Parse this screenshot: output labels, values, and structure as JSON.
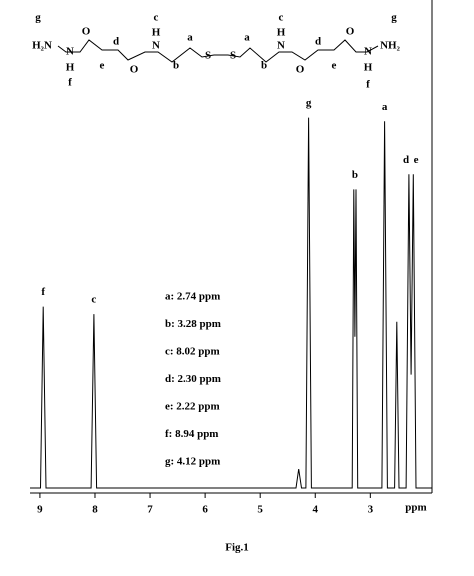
{
  "structure": {
    "labels": [
      "g",
      "H₂N",
      "N",
      "H",
      "f",
      "O",
      "e",
      "d",
      "O",
      "c",
      "H",
      "N",
      "a",
      "b",
      "S",
      "S",
      "a",
      "b",
      "c",
      "H",
      "N",
      "O",
      "d",
      "e",
      "O",
      "N",
      "H",
      "f",
      "NH₂",
      "g"
    ]
  },
  "chart_data": {
    "type": "line",
    "x": [
      9.18,
      8.99,
      8.94,
      8.89,
      8.07,
      8.02,
      7.97,
      4.35,
      4.3,
      4.25,
      4.17,
      4.12,
      4.07,
      3.33,
      3.3,
      3.28,
      3.26,
      3.23,
      2.79,
      2.74,
      2.69,
      2.56,
      2.52,
      2.48,
      2.35,
      2.3,
      2.26,
      2.22,
      2.17,
      1.88
    ],
    "values": [
      0,
      0,
      48,
      0,
      0,
      46,
      0,
      0,
      5,
      0,
      0,
      98,
      0,
      0,
      79,
      40,
      79,
      0,
      0,
      97,
      0,
      0,
      44,
      0,
      0,
      83,
      30,
      83,
      0,
      0
    ],
    "color": "#000000",
    "xlim": [
      9.18,
      1.88
    ],
    "ylim": [
      0,
      100
    ],
    "xticks": [
      9,
      8,
      7,
      6,
      5,
      4,
      3
    ],
    "x_label": "ppm",
    "annotations": [
      {
        "text": "f",
        "x": 8.94,
        "y": 48
      },
      {
        "text": "c",
        "x": 8.02,
        "y": 46
      },
      {
        "text": "g",
        "x": 4.12,
        "y": 98
      },
      {
        "text": "b",
        "x": 3.28,
        "y": 79
      },
      {
        "text": "a",
        "x": 2.74,
        "y": 97
      },
      {
        "text": "d",
        "x": 2.35,
        "y": 83
      },
      {
        "text": "e",
        "x": 2.17,
        "y": 83
      }
    ],
    "notes": [
      "a: 2.74 ppm",
      "b: 3.28 ppm",
      "c: 8.02 ppm",
      "d: 2.30 ppm",
      "e: 2.22 ppm",
      "f: 8.94 ppm",
      "g: 4.12 ppm"
    ],
    "caption": "Fig.1"
  }
}
